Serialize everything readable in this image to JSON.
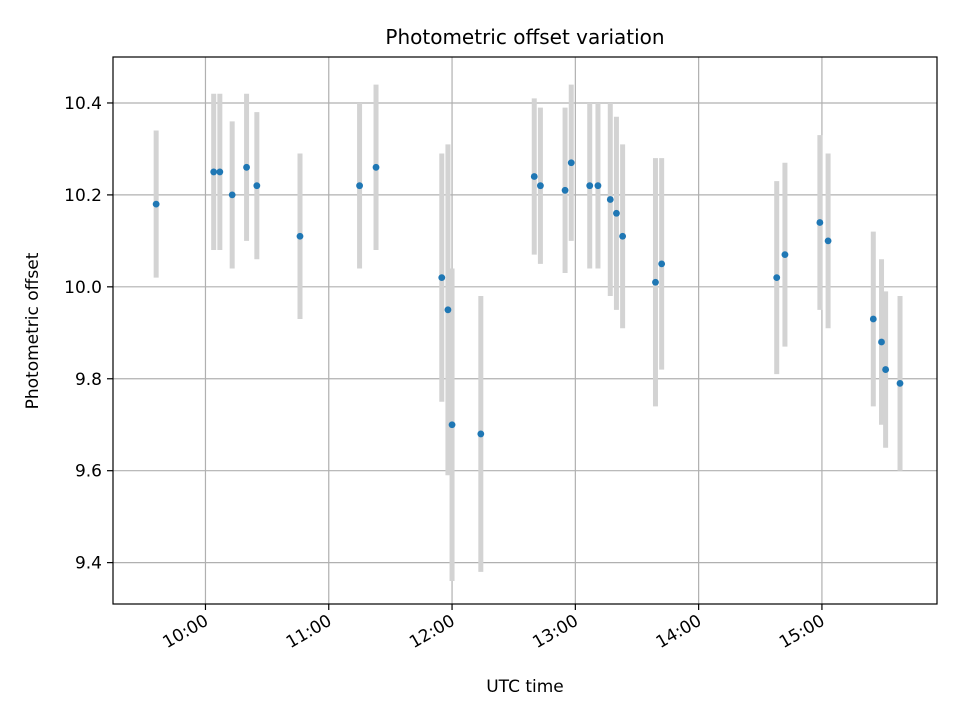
{
  "chart_data": {
    "type": "scatter",
    "title": "Photometric offset variation",
    "xlabel": "UTC time",
    "ylabel": "Photometric offset",
    "x_format": "HH:MM",
    "xlim": [
      "09:15",
      "15:56"
    ],
    "ylim": [
      9.31,
      10.5
    ],
    "x_ticks": [
      "10:00",
      "11:00",
      "12:00",
      "13:00",
      "14:00",
      "15:00"
    ],
    "y_ticks": [
      9.4,
      9.6,
      9.8,
      10.0,
      10.2,
      10.4
    ],
    "y_tick_labels": [
      "9.4",
      "9.6",
      "9.8",
      "10.0",
      "10.2",
      "10.4"
    ],
    "grid": true,
    "colors": {
      "marker": "#1f77b4",
      "errorbar": "#d3d3d3",
      "grid": "#b0b0b0"
    },
    "points": [
      {
        "t": "09:36",
        "y": 10.18,
        "err": 0.16
      },
      {
        "t": "10:04",
        "y": 10.25,
        "err": 0.17
      },
      {
        "t": "10:07",
        "y": 10.25,
        "err": 0.17
      },
      {
        "t": "10:13",
        "y": 10.2,
        "err": 0.16
      },
      {
        "t": "10:20",
        "y": 10.26,
        "err": 0.16
      },
      {
        "t": "10:25",
        "y": 10.22,
        "err": 0.16
      },
      {
        "t": "10:46",
        "y": 10.11,
        "err": 0.18
      },
      {
        "t": "11:15",
        "y": 10.22,
        "err": 0.18
      },
      {
        "t": "11:23",
        "y": 10.26,
        "err": 0.18
      },
      {
        "t": "11:55",
        "y": 10.02,
        "err": 0.27
      },
      {
        "t": "11:58",
        "y": 9.95,
        "err": 0.36
      },
      {
        "t": "12:00",
        "y": 9.7,
        "err": 0.34
      },
      {
        "t": "12:14",
        "y": 9.68,
        "err": 0.3
      },
      {
        "t": "12:40",
        "y": 10.24,
        "err": 0.17
      },
      {
        "t": "12:43",
        "y": 10.22,
        "err": 0.17
      },
      {
        "t": "12:55",
        "y": 10.21,
        "err": 0.18
      },
      {
        "t": "12:58",
        "y": 10.27,
        "err": 0.17
      },
      {
        "t": "13:07",
        "y": 10.22,
        "err": 0.18
      },
      {
        "t": "13:11",
        "y": 10.22,
        "err": 0.18
      },
      {
        "t": "13:17",
        "y": 10.19,
        "err": 0.21
      },
      {
        "t": "13:20",
        "y": 10.16,
        "err": 0.21
      },
      {
        "t": "13:23",
        "y": 10.11,
        "err": 0.2
      },
      {
        "t": "13:39",
        "y": 10.01,
        "err": 0.27
      },
      {
        "t": "13:42",
        "y": 10.05,
        "err": 0.23
      },
      {
        "t": "14:38",
        "y": 10.02,
        "err": 0.21
      },
      {
        "t": "14:42",
        "y": 10.07,
        "err": 0.2
      },
      {
        "t": "14:59",
        "y": 10.14,
        "err": 0.19
      },
      {
        "t": "15:03",
        "y": 10.1,
        "err": 0.19
      },
      {
        "t": "15:25",
        "y": 9.93,
        "err": 0.19
      },
      {
        "t": "15:29",
        "y": 9.88,
        "err": 0.18
      },
      {
        "t": "15:31",
        "y": 9.82,
        "err": 0.17
      },
      {
        "t": "15:38",
        "y": 9.79,
        "err": 0.19
      }
    ]
  }
}
